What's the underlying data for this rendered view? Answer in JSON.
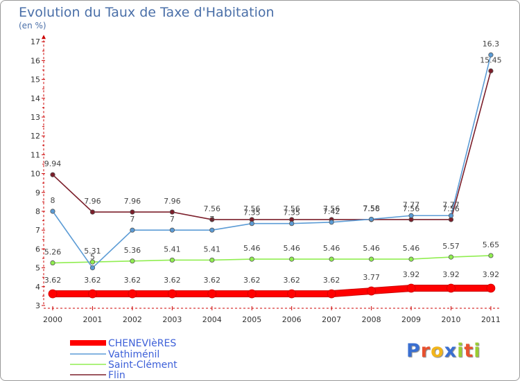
{
  "chart_data": {
    "type": "line",
    "title": "Evolution du Taux de Taxe d'Habitation",
    "subtitle": "(en %)",
    "x": [
      "2000",
      "2001",
      "2002",
      "2003",
      "2004",
      "2005",
      "2006",
      "2007",
      "2008",
      "2009",
      "2010",
      "2011"
    ],
    "ylim": [
      3,
      17
    ],
    "yticks": [
      "3",
      "4",
      "5",
      "6",
      "7",
      "8",
      "9",
      "10",
      "11",
      "12",
      "13",
      "14",
      "15",
      "16",
      "17"
    ],
    "grid": false,
    "legend_position": "bottom-left",
    "series": [
      {
        "name": "CHENEVIèRES",
        "color": "#ff0000",
        "values": [
          3.62,
          3.62,
          3.62,
          3.62,
          3.62,
          3.62,
          3.62,
          3.62,
          3.77,
          3.92,
          3.92,
          3.92
        ],
        "labels": [
          "3.62",
          "3.62",
          "3.62",
          "3.62",
          "3.62",
          "3.62",
          "3.62",
          "3.62",
          "3.77",
          "3.92",
          "3.92",
          "3.92"
        ]
      },
      {
        "name": "Vathiménil",
        "color": "#5b9bd5",
        "values": [
          8,
          5,
          7,
          7,
          7,
          7.35,
          7.35,
          7.42,
          7.58,
          7.77,
          7.77,
          16.3
        ],
        "labels": [
          "8",
          "5",
          "7",
          "7",
          "7",
          "7.35",
          "7.35",
          "7.42",
          "7.58",
          "7.77",
          "7.77",
          "16.3"
        ]
      },
      {
        "name": "Saint-Clément",
        "color": "#90ee50",
        "values": [
          5.26,
          5.31,
          5.36,
          5.41,
          5.41,
          5.46,
          5.46,
          5.46,
          5.46,
          5.46,
          5.57,
          5.65
        ],
        "labels": [
          "5.26",
          "5.31",
          "5.36",
          "5.41",
          "5.41",
          "5.46",
          "5.46",
          "5.46",
          "5.46",
          "5.46",
          "5.57",
          "5.65"
        ]
      },
      {
        "name": "Flin",
        "color": "#7b1e2a",
        "values": [
          9.94,
          7.96,
          7.96,
          7.96,
          7.56,
          7.56,
          7.56,
          7.56,
          7.56,
          7.56,
          7.56,
          15.45
        ],
        "labels": [
          "9.94",
          "7.96",
          "7.96",
          "7.96",
          "7.56",
          "7.56",
          "7.56",
          "7.56",
          "7.56",
          "7.56",
          "7.56",
          "15.45"
        ]
      }
    ]
  },
  "logo": {
    "letters": [
      {
        "ch": "P",
        "color": "#3a6fd1"
      },
      {
        "ch": "r",
        "color": "#e8512f"
      },
      {
        "ch": "o",
        "color": "#f2b51b"
      },
      {
        "ch": "x",
        "color": "#3a6fd1"
      },
      {
        "ch": "i",
        "color": "#9acd32"
      },
      {
        "ch": "t",
        "color": "#e8512f"
      },
      {
        "ch": "i",
        "color": "#9acd32"
      }
    ]
  }
}
